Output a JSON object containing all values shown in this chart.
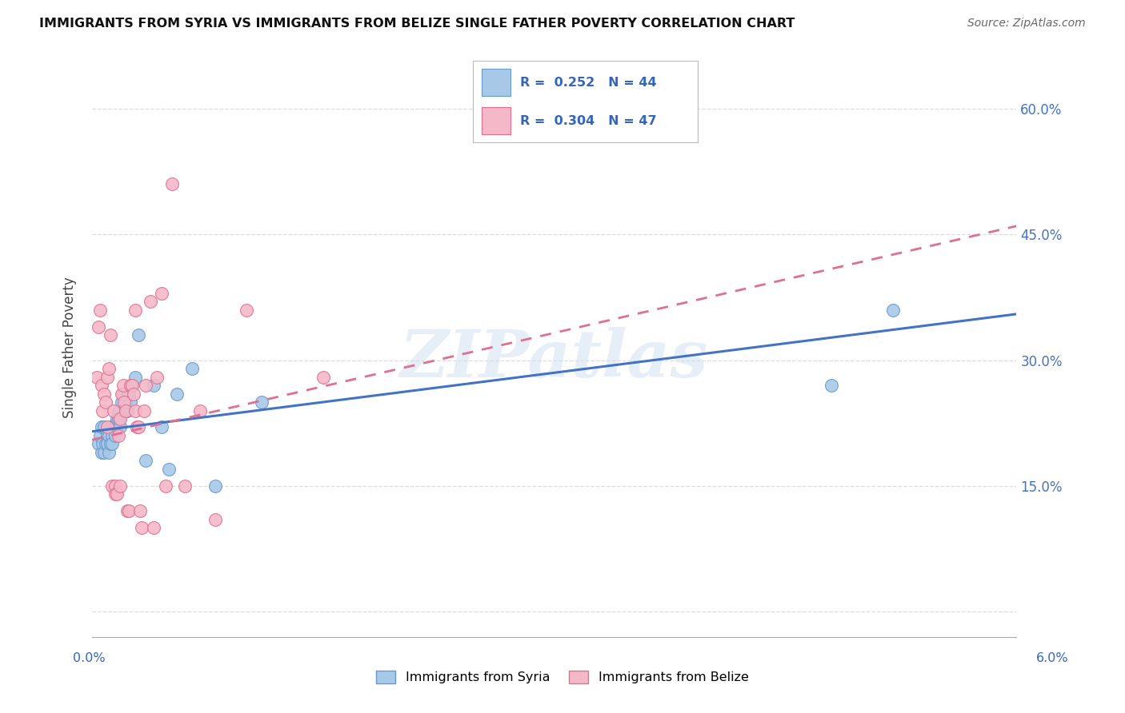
{
  "title": "IMMIGRANTS FROM SYRIA VS IMMIGRANTS FROM BELIZE SINGLE FATHER POVERTY CORRELATION CHART",
  "source": "Source: ZipAtlas.com",
  "ylabel": "Single Father Poverty",
  "legend_syria": "Immigrants from Syria",
  "legend_belize": "Immigrants from Belize",
  "syria_R": "0.252",
  "syria_N": "44",
  "belize_R": "0.304",
  "belize_N": "47",
  "xlim": [
    0.0,
    6.0
  ],
  "ylim": [
    -3.0,
    66.0
  ],
  "ytick_vals": [
    0,
    15,
    30,
    45,
    60
  ],
  "color_syria": "#a8c8e8",
  "color_syria_edge": "#6699cc",
  "color_belize": "#f4b8c8",
  "color_belize_edge": "#e07090",
  "color_syria_line": "#4472c4",
  "color_belize_line": "#e07090",
  "syria_x": [
    0.04,
    0.05,
    0.06,
    0.06,
    0.07,
    0.08,
    0.08,
    0.09,
    0.1,
    0.1,
    0.11,
    0.11,
    0.12,
    0.12,
    0.13,
    0.13,
    0.14,
    0.15,
    0.15,
    0.16,
    0.16,
    0.17,
    0.17,
    0.18,
    0.19,
    0.2,
    0.21,
    0.22,
    0.23,
    0.24,
    0.25,
    0.26,
    0.28,
    0.3,
    0.35,
    0.4,
    0.45,
    0.5,
    0.55,
    0.65,
    0.8,
    1.1,
    4.8,
    5.2
  ],
  "syria_y": [
    20,
    21,
    19,
    22,
    20,
    19,
    22,
    20,
    21,
    20,
    21,
    19,
    20,
    22,
    21,
    20,
    22,
    22,
    21,
    23,
    22,
    24,
    23,
    22,
    25,
    26,
    24,
    25,
    24,
    26,
    25,
    27,
    28,
    33,
    18,
    27,
    22,
    17,
    26,
    29,
    15,
    25,
    27,
    36
  ],
  "belize_x": [
    0.03,
    0.04,
    0.05,
    0.06,
    0.07,
    0.08,
    0.09,
    0.1,
    0.1,
    0.11,
    0.12,
    0.13,
    0.14,
    0.15,
    0.15,
    0.16,
    0.17,
    0.18,
    0.18,
    0.19,
    0.2,
    0.21,
    0.22,
    0.23,
    0.24,
    0.25,
    0.26,
    0.27,
    0.28,
    0.28,
    0.29,
    0.3,
    0.31,
    0.32,
    0.34,
    0.35,
    0.38,
    0.4,
    0.42,
    0.45,
    0.48,
    0.52,
    0.6,
    0.7,
    0.8,
    1.0,
    1.5
  ],
  "belize_y": [
    28,
    34,
    36,
    27,
    24,
    26,
    25,
    22,
    28,
    29,
    33,
    15,
    24,
    15,
    14,
    14,
    21,
    23,
    15,
    26,
    27,
    25,
    24,
    12,
    12,
    27,
    27,
    26,
    24,
    36,
    22,
    22,
    12,
    10,
    24,
    27,
    37,
    10,
    28,
    38,
    15,
    51,
    15,
    24,
    11,
    36,
    28
  ],
  "syria_line_x": [
    0.0,
    6.0
  ],
  "syria_line_y": [
    21.5,
    35.5
  ],
  "belize_line_x": [
    0.0,
    6.0
  ],
  "belize_line_y": [
    20.5,
    46.0
  ],
  "watermark_text": "ZIPatlas",
  "background_color": "#ffffff",
  "grid_color": "#dddddd"
}
